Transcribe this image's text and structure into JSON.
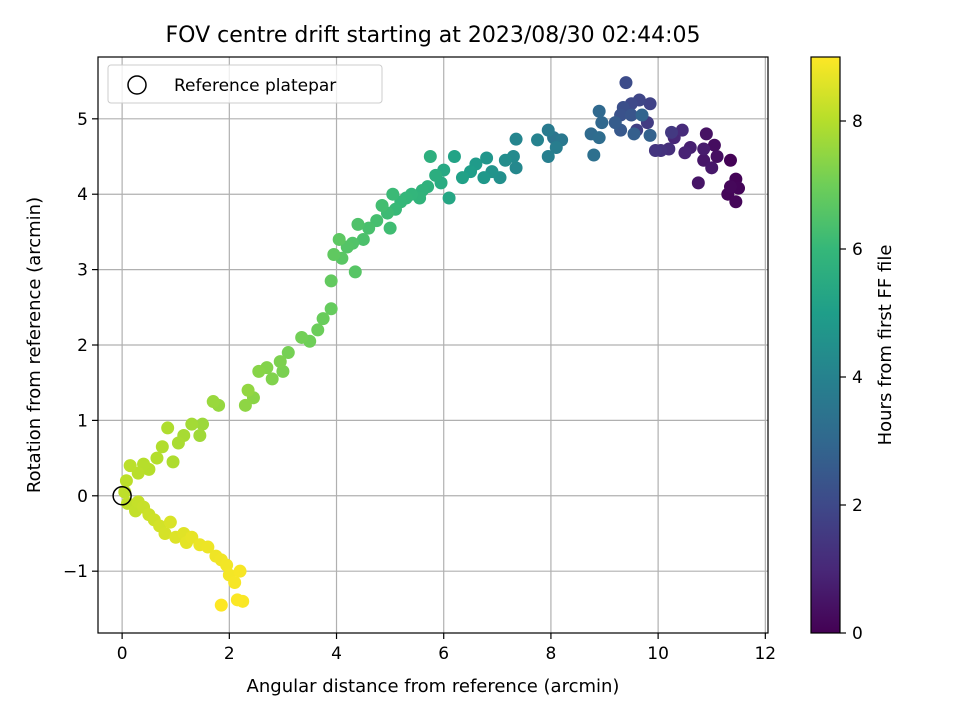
{
  "chart_data": {
    "type": "scatter",
    "title": "FOV centre drift starting at 2023/08/30 02:44:05",
    "xlabel": "Angular distance from reference (arcmin)",
    "ylabel": "Rotation from reference (arcmin)",
    "xlim": [
      -0.45,
      12.05
    ],
    "ylim": [
      -1.82,
      5.82
    ],
    "xticks": [
      "0",
      "2",
      "4",
      "6",
      "8",
      "10",
      "12"
    ],
    "xtick_values": [
      0,
      2,
      4,
      6,
      8,
      10,
      12
    ],
    "yticks": [
      "−1",
      "0",
      "1",
      "2",
      "3",
      "4",
      "5"
    ],
    "ytick_values": [
      -1,
      0,
      1,
      2,
      3,
      4,
      5
    ],
    "grid": true,
    "legend": {
      "placement": "upper left",
      "entries": [
        {
          "label": "Reference platepar",
          "marker": "open-circle"
        }
      ]
    },
    "reference_point": {
      "x": 0,
      "y": 0
    },
    "colorbar": {
      "label": "Hours from first FF file",
      "range": [
        0,
        9
      ],
      "ticks": [
        "0",
        "2",
        "4",
        "6",
        "8"
      ],
      "tick_values": [
        0,
        2,
        4,
        6,
        8
      ],
      "colormap": "viridis",
      "colors": [
        "#440154",
        "#482878",
        "#3e4989",
        "#31688e",
        "#26828e",
        "#1f9e89",
        "#35b779",
        "#6ece58",
        "#b5de2b",
        "#fde725"
      ]
    },
    "points": [
      [
        11.35,
        4.45,
        0.05
      ],
      [
        11.45,
        4.2,
        0.08
      ],
      [
        11.5,
        4.08,
        0.1
      ],
      [
        11.3,
        4.0,
        0.12
      ],
      [
        11.45,
        3.9,
        0.15
      ],
      [
        11.35,
        4.1,
        0.18
      ],
      [
        11.05,
        4.65,
        0.3
      ],
      [
        11.1,
        4.5,
        0.35
      ],
      [
        10.9,
        4.8,
        0.45
      ],
      [
        10.75,
        4.15,
        0.5
      ],
      [
        10.85,
        4.45,
        0.55
      ],
      [
        11.0,
        4.35,
        0.6
      ],
      [
        10.85,
        4.6,
        0.7
      ],
      [
        10.6,
        4.62,
        0.8
      ],
      [
        10.5,
        4.55,
        0.9
      ],
      [
        10.3,
        4.75,
        1.0
      ],
      [
        10.45,
        4.85,
        1.1
      ],
      [
        10.2,
        4.6,
        1.2
      ],
      [
        10.05,
        4.58,
        1.3
      ],
      [
        9.95,
        4.58,
        1.4
      ],
      [
        10.25,
        4.82,
        1.5
      ],
      [
        9.8,
        4.95,
        1.6
      ],
      [
        9.6,
        4.85,
        1.7
      ],
      [
        9.85,
        5.2,
        1.8
      ],
      [
        9.65,
        5.25,
        1.9
      ],
      [
        9.5,
        5.2,
        2.0
      ],
      [
        9.4,
        5.48,
        2.1
      ],
      [
        9.35,
        5.15,
        2.2
      ],
      [
        9.3,
        5.05,
        2.3
      ],
      [
        9.5,
        5.05,
        2.4
      ],
      [
        9.3,
        4.85,
        2.5
      ],
      [
        9.2,
        4.95,
        2.6
      ],
      [
        9.55,
        4.8,
        2.7
      ],
      [
        9.85,
        4.78,
        2.8
      ],
      [
        9.7,
        5.05,
        2.9
      ],
      [
        8.95,
        4.95,
        3.0
      ],
      [
        8.9,
        5.1,
        3.05
      ],
      [
        8.75,
        4.8,
        3.1
      ],
      [
        8.9,
        4.75,
        3.2
      ],
      [
        8.8,
        4.52,
        3.3
      ],
      [
        8.05,
        4.75,
        3.5
      ],
      [
        8.2,
        4.72,
        3.6
      ],
      [
        7.95,
        4.85,
        3.7
      ],
      [
        8.1,
        4.62,
        3.8
      ],
      [
        7.95,
        4.5,
        3.9
      ],
      [
        7.75,
        4.72,
        4.0
      ],
      [
        7.35,
        4.73,
        4.1
      ],
      [
        7.35,
        4.35,
        4.2
      ],
      [
        7.3,
        4.5,
        4.3
      ],
      [
        7.15,
        4.45,
        4.4
      ],
      [
        7.05,
        4.22,
        4.5
      ],
      [
        6.9,
        4.3,
        4.6
      ],
      [
        6.8,
        4.48,
        4.7
      ],
      [
        6.75,
        4.22,
        4.8
      ],
      [
        6.6,
        4.4,
        4.9
      ],
      [
        6.5,
        4.3,
        5.0
      ],
      [
        6.35,
        4.22,
        5.1
      ],
      [
        6.2,
        4.5,
        5.2
      ],
      [
        6.1,
        3.95,
        5.3
      ],
      [
        6.0,
        4.32,
        5.4
      ],
      [
        5.95,
        4.15,
        5.5
      ],
      [
        5.85,
        4.25,
        5.6
      ],
      [
        5.75,
        4.5,
        5.7
      ],
      [
        5.7,
        4.1,
        5.75
      ],
      [
        5.6,
        4.05,
        5.8
      ],
      [
        5.55,
        3.95,
        5.85
      ],
      [
        5.4,
        4.0,
        5.9
      ],
      [
        5.3,
        3.95,
        5.95
      ],
      [
        5.2,
        3.9,
        6.0
      ],
      [
        5.1,
        3.8,
        6.05
      ],
      [
        5.05,
        4.0,
        6.1
      ],
      [
        4.95,
        3.75,
        6.15
      ],
      [
        5.0,
        3.55,
        6.2
      ],
      [
        4.85,
        3.85,
        6.25
      ],
      [
        4.75,
        3.65,
        6.3
      ],
      [
        4.6,
        3.55,
        6.35
      ],
      [
        4.5,
        3.4,
        6.4
      ],
      [
        4.4,
        3.6,
        6.45
      ],
      [
        4.3,
        3.35,
        6.5
      ],
      [
        4.2,
        3.3,
        6.55
      ],
      [
        4.35,
        2.97,
        6.6
      ],
      [
        4.1,
        3.15,
        6.65
      ],
      [
        4.05,
        3.4,
        6.7
      ],
      [
        3.95,
        3.2,
        6.75
      ],
      [
        3.9,
        2.85,
        6.8
      ],
      [
        3.9,
        2.48,
        6.85
      ],
      [
        3.75,
        2.35,
        6.9
      ],
      [
        3.65,
        2.2,
        6.95
      ],
      [
        3.5,
        2.05,
        7.0
      ],
      [
        3.35,
        2.1,
        7.05
      ],
      [
        3.1,
        1.9,
        7.1
      ],
      [
        3.0,
        1.65,
        7.15
      ],
      [
        2.95,
        1.78,
        7.2
      ],
      [
        2.8,
        1.55,
        7.25
      ],
      [
        2.7,
        1.7,
        7.3
      ],
      [
        2.55,
        1.65,
        7.35
      ],
      [
        2.45,
        1.3,
        7.4
      ],
      [
        2.3,
        1.2,
        7.45
      ],
      [
        2.35,
        1.4,
        7.5
      ],
      [
        1.8,
        1.2,
        7.55
      ],
      [
        1.7,
        1.25,
        7.6
      ],
      [
        1.5,
        0.95,
        7.65
      ],
      [
        1.45,
        0.8,
        7.7
      ],
      [
        1.3,
        0.95,
        7.75
      ],
      [
        1.15,
        0.8,
        7.8
      ],
      [
        1.05,
        0.7,
        7.85
      ],
      [
        0.95,
        0.45,
        7.9
      ],
      [
        0.85,
        0.9,
        7.92
      ],
      [
        0.75,
        0.65,
        7.95
      ],
      [
        0.65,
        0.5,
        7.97
      ],
      [
        0.5,
        0.35,
        8.0
      ],
      [
        0.4,
        0.42,
        8.02
      ],
      [
        0.3,
        0.3,
        8.05
      ],
      [
        0.15,
        0.4,
        8.08
      ],
      [
        0.08,
        0.2,
        8.1
      ],
      [
        0.05,
        0.05,
        8.12
      ],
      [
        0.1,
        -0.1,
        8.15
      ],
      [
        0.25,
        -0.2,
        8.2
      ],
      [
        0.3,
        -0.08,
        8.22
      ],
      [
        0.4,
        -0.15,
        8.25
      ],
      [
        0.5,
        -0.25,
        8.3
      ],
      [
        0.6,
        -0.32,
        8.35
      ],
      [
        0.7,
        -0.4,
        8.4
      ],
      [
        0.8,
        -0.5,
        8.45
      ],
      [
        0.9,
        -0.35,
        8.5
      ],
      [
        1.0,
        -0.55,
        8.55
      ],
      [
        1.15,
        -0.5,
        8.6
      ],
      [
        1.2,
        -0.62,
        8.65
      ],
      [
        1.3,
        -0.55,
        8.7
      ],
      [
        1.45,
        -0.65,
        8.75
      ],
      [
        1.6,
        -0.68,
        8.78
      ],
      [
        1.75,
        -0.8,
        8.8
      ],
      [
        1.85,
        -0.85,
        8.83
      ],
      [
        1.95,
        -0.92,
        8.85
      ],
      [
        2.0,
        -1.05,
        8.88
      ],
      [
        2.1,
        -1.15,
        8.9
      ],
      [
        2.2,
        -1.0,
        8.92
      ],
      [
        2.25,
        -1.4,
        8.95
      ],
      [
        2.15,
        -1.38,
        8.97
      ],
      [
        1.85,
        -1.45,
        9.0
      ]
    ]
  }
}
